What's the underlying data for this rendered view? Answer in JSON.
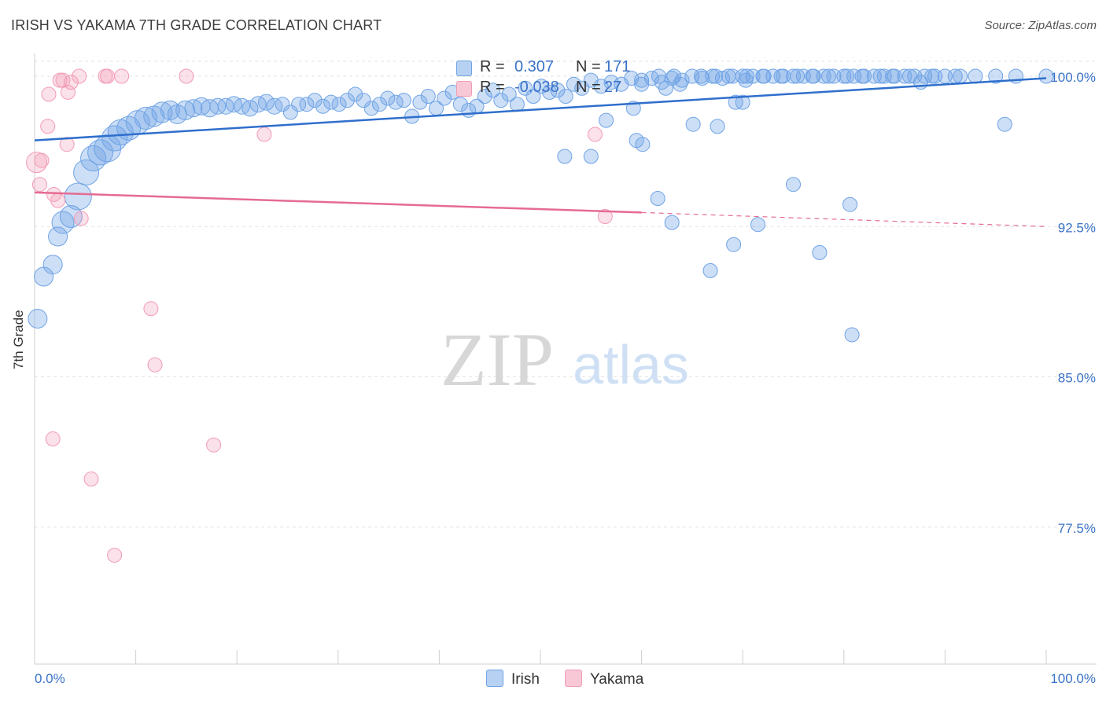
{
  "title": "IRISH VS YAKAMA 7TH GRADE CORRELATION CHART",
  "source": "Source: ZipAtlas.com",
  "watermark": {
    "zip": "ZIP",
    "atlas": "atlas"
  },
  "colors": {
    "irish": "#6fa3e6",
    "irish_line": "#2f6fcc",
    "yakama": "#f29bb6",
    "yakama_line": "#e56b93",
    "tick_label": "#3a73c8"
  },
  "legend": {
    "irish": {
      "r_label": "R =",
      "r_value": " 0.307",
      "n_label": "N =",
      "n_value": "171"
    },
    "yakama": {
      "r_label": "R =",
      "r_value": "-0.038",
      "n_label": "N =",
      "n_value": " 27"
    }
  },
  "bottom_legend": {
    "irish": "Irish",
    "yakama": "Yakama"
  },
  "chart_data": {
    "type": "scatter",
    "title": "IRISH VS YAKAMA 7TH GRADE CORRELATION CHART",
    "xlabel": "",
    "ylabel": "7th Grade",
    "xlim": [
      0,
      100
    ],
    "ylim": [
      70,
      100.6
    ],
    "x_tick_labels": [
      "0.0%",
      "100.0%"
    ],
    "y_ticks": [
      77.5,
      85.0,
      92.5,
      100.0
    ],
    "y_tick_labels": [
      "77.5%",
      "85.0%",
      "92.5%",
      "100.0%"
    ],
    "grid": true,
    "series": [
      {
        "name": "Irish",
        "trend": {
          "x": [
            0,
            100
          ],
          "y": [
            96.8,
            99.9
          ]
        },
        "points": [
          {
            "x": 0.3,
            "y": 87.9,
            "s": 12
          },
          {
            "x": 0.9,
            "y": 90.0,
            "s": 12
          },
          {
            "x": 1.8,
            "y": 90.6,
            "s": 12
          },
          {
            "x": 2.3,
            "y": 92.0,
            "s": 12
          },
          {
            "x": 2.8,
            "y": 92.7,
            "s": 14
          },
          {
            "x": 3.6,
            "y": 93.0,
            "s": 14
          },
          {
            "x": 4.3,
            "y": 94.0,
            "s": 17
          },
          {
            "x": 5.1,
            "y": 95.2,
            "s": 16
          },
          {
            "x": 5.8,
            "y": 95.9,
            "s": 16
          },
          {
            "x": 6.5,
            "y": 96.2,
            "s": 16
          },
          {
            "x": 7.2,
            "y": 96.4,
            "s": 17
          },
          {
            "x": 7.9,
            "y": 96.9,
            "s": 16
          },
          {
            "x": 8.5,
            "y": 97.2,
            "s": 16
          },
          {
            "x": 9.3,
            "y": 97.4,
            "s": 15
          },
          {
            "x": 10.2,
            "y": 97.7,
            "s": 15
          },
          {
            "x": 11.0,
            "y": 97.9,
            "s": 14
          },
          {
            "x": 11.8,
            "y": 98.0,
            "s": 13
          },
          {
            "x": 12.6,
            "y": 98.2,
            "s": 13
          },
          {
            "x": 13.4,
            "y": 98.3,
            "s": 12
          },
          {
            "x": 14.1,
            "y": 98.1,
            "s": 12
          },
          {
            "x": 14.9,
            "y": 98.3,
            "s": 12
          },
          {
            "x": 15.7,
            "y": 98.4,
            "s": 11
          },
          {
            "x": 16.5,
            "y": 98.5,
            "s": 11
          },
          {
            "x": 17.3,
            "y": 98.4,
            "s": 11
          },
          {
            "x": 18.1,
            "y": 98.5,
            "s": 10
          },
          {
            "x": 18.9,
            "y": 98.5,
            "s": 10
          },
          {
            "x": 19.7,
            "y": 98.6,
            "s": 10
          },
          {
            "x": 20.5,
            "y": 98.5,
            "s": 10
          },
          {
            "x": 21.3,
            "y": 98.4,
            "s": 10
          },
          {
            "x": 22.1,
            "y": 98.6,
            "s": 10
          },
          {
            "x": 22.9,
            "y": 98.7,
            "s": 10
          },
          {
            "x": 23.7,
            "y": 98.5,
            "s": 10
          },
          {
            "x": 24.5,
            "y": 98.6,
            "s": 9
          },
          {
            "x": 25.3,
            "y": 98.2,
            "s": 9
          },
          {
            "x": 26.1,
            "y": 98.6,
            "s": 9
          },
          {
            "x": 26.9,
            "y": 98.6,
            "s": 9
          },
          {
            "x": 27.7,
            "y": 98.8,
            "s": 9
          },
          {
            "x": 28.5,
            "y": 98.5,
            "s": 9
          },
          {
            "x": 29.3,
            "y": 98.7,
            "s": 9
          },
          {
            "x": 30.1,
            "y": 98.6,
            "s": 9
          },
          {
            "x": 30.9,
            "y": 98.8,
            "s": 9
          },
          {
            "x": 31.7,
            "y": 99.1,
            "s": 9
          },
          {
            "x": 32.5,
            "y": 98.8,
            "s": 9
          },
          {
            "x": 33.3,
            "y": 98.4,
            "s": 9
          },
          {
            "x": 34.1,
            "y": 98.6,
            "s": 9
          },
          {
            "x": 34.9,
            "y": 98.9,
            "s": 9
          },
          {
            "x": 35.7,
            "y": 98.7,
            "s": 9
          },
          {
            "x": 36.5,
            "y": 98.8,
            "s": 9
          },
          {
            "x": 37.3,
            "y": 98.0,
            "s": 9
          },
          {
            "x": 38.1,
            "y": 98.7,
            "s": 9
          },
          {
            "x": 38.9,
            "y": 99.0,
            "s": 9
          },
          {
            "x": 39.7,
            "y": 98.4,
            "s": 9
          },
          {
            "x": 40.5,
            "y": 98.9,
            "s": 9
          },
          {
            "x": 41.3,
            "y": 99.2,
            "s": 9
          },
          {
            "x": 42.1,
            "y": 98.6,
            "s": 9
          },
          {
            "x": 42.9,
            "y": 98.3,
            "s": 9
          },
          {
            "x": 43.7,
            "y": 98.5,
            "s": 9
          },
          {
            "x": 44.5,
            "y": 99.0,
            "s": 9
          },
          {
            "x": 45.3,
            "y": 99.3,
            "s": 9
          },
          {
            "x": 46.1,
            "y": 98.8,
            "s": 9
          },
          {
            "x": 46.9,
            "y": 99.1,
            "s": 9
          },
          {
            "x": 47.7,
            "y": 98.6,
            "s": 9
          },
          {
            "x": 48.5,
            "y": 99.4,
            "s": 9
          },
          {
            "x": 49.3,
            "y": 99.0,
            "s": 9
          },
          {
            "x": 50.1,
            "y": 99.5,
            "s": 9
          },
          {
            "x": 50.9,
            "y": 99.2,
            "s": 9
          },
          {
            "x": 51.7,
            "y": 99.3,
            "s": 9
          },
          {
            "x": 52.5,
            "y": 99.0,
            "s": 9
          },
          {
            "x": 53.3,
            "y": 99.6,
            "s": 9
          },
          {
            "x": 54.1,
            "y": 99.4,
            "s": 9
          },
          {
            "x": 55.0,
            "y": 99.8,
            "s": 9
          },
          {
            "x": 56.0,
            "y": 99.5,
            "s": 9
          },
          {
            "x": 57.0,
            "y": 99.7,
            "s": 9
          },
          {
            "x": 58.0,
            "y": 99.6,
            "s": 9
          },
          {
            "x": 59.0,
            "y": 99.9,
            "s": 9
          },
          {
            "x": 60.0,
            "y": 99.6,
            "s": 9
          },
          {
            "x": 61.0,
            "y": 99.9,
            "s": 9
          },
          {
            "x": 62.0,
            "y": 99.7,
            "s": 9
          },
          {
            "x": 63.0,
            "y": 99.9,
            "s": 9
          },
          {
            "x": 64.0,
            "y": 99.8,
            "s": 9
          },
          {
            "x": 65.0,
            "y": 100.0,
            "s": 9
          },
          {
            "x": 66.0,
            "y": 99.9,
            "s": 9
          },
          {
            "x": 67.0,
            "y": 100.0,
            "s": 9
          },
          {
            "x": 68.0,
            "y": 99.9,
            "s": 9
          },
          {
            "x": 69.0,
            "y": 100.0,
            "s": 9
          },
          {
            "x": 70.0,
            "y": 100.0,
            "s": 9
          },
          {
            "x": 71.0,
            "y": 100.0,
            "s": 9
          },
          {
            "x": 72.0,
            "y": 100.0,
            "s": 9
          },
          {
            "x": 73.0,
            "y": 100.0,
            "s": 9
          },
          {
            "x": 74.0,
            "y": 100.0,
            "s": 9
          },
          {
            "x": 75.0,
            "y": 100.0,
            "s": 9
          },
          {
            "x": 76.0,
            "y": 100.0,
            "s": 9
          },
          {
            "x": 77.0,
            "y": 100.0,
            "s": 9
          },
          {
            "x": 78.0,
            "y": 100.0,
            "s": 9
          },
          {
            "x": 79.0,
            "y": 100.0,
            "s": 9
          },
          {
            "x": 80.0,
            "y": 100.0,
            "s": 9
          },
          {
            "x": 81.0,
            "y": 100.0,
            "s": 9
          },
          {
            "x": 82.0,
            "y": 100.0,
            "s": 9
          },
          {
            "x": 83.0,
            "y": 100.0,
            "s": 9
          },
          {
            "x": 84.0,
            "y": 100.0,
            "s": 9
          },
          {
            "x": 85.0,
            "y": 100.0,
            "s": 9
          },
          {
            "x": 86.0,
            "y": 100.0,
            "s": 9
          },
          {
            "x": 87.0,
            "y": 100.0,
            "s": 9
          },
          {
            "x": 88.0,
            "y": 100.0,
            "s": 9
          },
          {
            "x": 89.0,
            "y": 100.0,
            "s": 9
          },
          {
            "x": 90.0,
            "y": 100.0,
            "s": 9
          },
          {
            "x": 91.0,
            "y": 100.0,
            "s": 9
          },
          {
            "x": 93.0,
            "y": 100.0,
            "s": 9
          },
          {
            "x": 95.0,
            "y": 100.0,
            "s": 9
          },
          {
            "x": 97.0,
            "y": 100.0,
            "s": 9
          },
          {
            "x": 100.0,
            "y": 100.0,
            "s": 9
          },
          {
            "x": 87.6,
            "y": 99.7,
            "s": 9
          },
          {
            "x": 84.8,
            "y": 100.0,
            "s": 9
          },
          {
            "x": 60.0,
            "y": 99.8,
            "s": 9
          },
          {
            "x": 61.7,
            "y": 100.0,
            "s": 9
          },
          {
            "x": 63.2,
            "y": 100.0,
            "s": 9
          },
          {
            "x": 65.9,
            "y": 100.0,
            "s": 9
          },
          {
            "x": 67.3,
            "y": 100.0,
            "s": 9
          },
          {
            "x": 68.6,
            "y": 100.0,
            "s": 9
          },
          {
            "x": 70.4,
            "y": 100.0,
            "s": 9
          },
          {
            "x": 72.1,
            "y": 100.0,
            "s": 9
          },
          {
            "x": 73.8,
            "y": 100.0,
            "s": 9
          },
          {
            "x": 75.4,
            "y": 100.0,
            "s": 9
          },
          {
            "x": 76.9,
            "y": 100.0,
            "s": 9
          },
          {
            "x": 78.5,
            "y": 100.0,
            "s": 9
          },
          {
            "x": 80.3,
            "y": 100.0,
            "s": 9
          },
          {
            "x": 81.8,
            "y": 100.0,
            "s": 9
          },
          {
            "x": 83.6,
            "y": 100.0,
            "s": 9
          },
          {
            "x": 86.5,
            "y": 100.0,
            "s": 9
          },
          {
            "x": 88.7,
            "y": 100.0,
            "s": 9
          },
          {
            "x": 91.5,
            "y": 100.0,
            "s": 9
          },
          {
            "x": 62.4,
            "y": 99.4,
            "s": 9
          },
          {
            "x": 63.8,
            "y": 99.6,
            "s": 9
          },
          {
            "x": 70.3,
            "y": 99.8,
            "s": 9
          },
          {
            "x": 59.2,
            "y": 98.4,
            "s": 9
          },
          {
            "x": 70.0,
            "y": 98.7,
            "s": 9
          },
          {
            "x": 69.3,
            "y": 98.7,
            "s": 9
          },
          {
            "x": 56.5,
            "y": 97.8,
            "s": 9
          },
          {
            "x": 65.1,
            "y": 97.6,
            "s": 9
          },
          {
            "x": 67.5,
            "y": 97.5,
            "s": 9
          },
          {
            "x": 95.9,
            "y": 97.6,
            "s": 9
          },
          {
            "x": 59.5,
            "y": 96.8,
            "s": 9
          },
          {
            "x": 60.1,
            "y": 96.6,
            "s": 9
          },
          {
            "x": 55.0,
            "y": 96.0,
            "s": 9
          },
          {
            "x": 52.4,
            "y": 96.0,
            "s": 9
          },
          {
            "x": 75.0,
            "y": 94.6,
            "s": 9
          },
          {
            "x": 61.6,
            "y": 93.9,
            "s": 9
          },
          {
            "x": 80.6,
            "y": 93.6,
            "s": 9
          },
          {
            "x": 63.0,
            "y": 92.7,
            "s": 9
          },
          {
            "x": 71.5,
            "y": 92.6,
            "s": 9
          },
          {
            "x": 69.1,
            "y": 91.6,
            "s": 9
          },
          {
            "x": 77.6,
            "y": 91.2,
            "s": 9
          },
          {
            "x": 66.8,
            "y": 90.3,
            "s": 9
          },
          {
            "x": 80.8,
            "y": 87.1,
            "s": 9
          }
        ]
      },
      {
        "name": "Yakama",
        "trend": {
          "x": [
            0,
            60
          ],
          "y": [
            94.2,
            93.2
          ]
        },
        "trend_dashed": {
          "x": [
            60,
            100
          ],
          "y": [
            93.2,
            92.5
          ]
        },
        "points": [
          {
            "x": 0.2,
            "y": 95.7,
            "s": 13
          },
          {
            "x": 0.5,
            "y": 94.6,
            "s": 9
          },
          {
            "x": 0.7,
            "y": 95.8,
            "s": 9
          },
          {
            "x": 1.3,
            "y": 97.5,
            "s": 9
          },
          {
            "x": 1.4,
            "y": 99.1,
            "s": 9
          },
          {
            "x": 1.9,
            "y": 94.1,
            "s": 9
          },
          {
            "x": 2.3,
            "y": 93.8,
            "s": 9
          },
          {
            "x": 2.5,
            "y": 99.8,
            "s": 9
          },
          {
            "x": 2.8,
            "y": 99.8,
            "s": 9
          },
          {
            "x": 3.2,
            "y": 96.6,
            "s": 9
          },
          {
            "x": 3.3,
            "y": 99.2,
            "s": 9
          },
          {
            "x": 3.6,
            "y": 99.7,
            "s": 9
          },
          {
            "x": 4.4,
            "y": 100.0,
            "s": 9
          },
          {
            "x": 4.6,
            "y": 92.9,
            "s": 9
          },
          {
            "x": 7.0,
            "y": 100.0,
            "s": 9
          },
          {
            "x": 7.2,
            "y": 100.0,
            "s": 9
          },
          {
            "x": 8.6,
            "y": 100.0,
            "s": 9
          },
          {
            "x": 15.0,
            "y": 100.0,
            "s": 9
          },
          {
            "x": 22.7,
            "y": 97.1,
            "s": 9
          },
          {
            "x": 55.4,
            "y": 97.1,
            "s": 9
          },
          {
            "x": 56.4,
            "y": 93.0,
            "s": 9
          },
          {
            "x": 11.5,
            "y": 88.4,
            "s": 9
          },
          {
            "x": 11.9,
            "y": 85.6,
            "s": 9
          },
          {
            "x": 1.8,
            "y": 81.9,
            "s": 9
          },
          {
            "x": 17.7,
            "y": 81.6,
            "s": 9
          },
          {
            "x": 5.6,
            "y": 79.9,
            "s": 9
          },
          {
            "x": 7.9,
            "y": 76.1,
            "s": 9
          }
        ]
      }
    ]
  }
}
